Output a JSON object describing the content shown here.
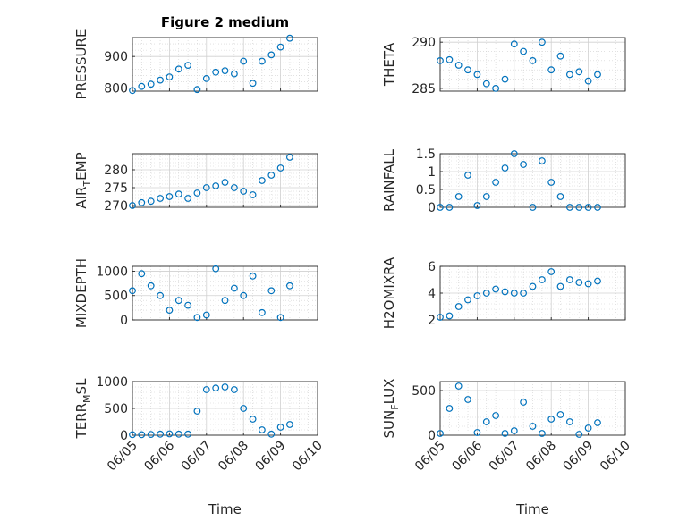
{
  "figure": {
    "title": "Figure 2 medium",
    "background": "#ffffff",
    "marker_color": "#0072BD",
    "grid_color": "#d0d0d0",
    "axis_color": "#262626"
  },
  "chart_data": [
    {
      "type": "scatter",
      "marker": "circle-open",
      "ylabel": "PRESSURE",
      "xlabel": "",
      "title": "Figure 2 medium",
      "xlim": [
        "06/05",
        "06/10"
      ],
      "ylim": [
        790,
        960
      ],
      "yticks": [
        800,
        900
      ],
      "ytick_labels": [
        "800",
        "900"
      ],
      "xticks": [],
      "grid": true,
      "minor_grid": true,
      "x": [
        "06/05 00:00",
        "06/05 06:00",
        "06/05 12:00",
        "06/05 18:00",
        "06/06 00:00",
        "06/06 06:00",
        "06/06 12:00",
        "06/06 18:00",
        "06/07 00:00",
        "06/07 06:00",
        "06/07 12:00",
        "06/07 18:00",
        "06/08 00:00",
        "06/08 06:00",
        "06/08 12:00",
        "06/08 18:00",
        "06/09 00:00",
        "06/09 06:00"
      ],
      "y": [
        792,
        805,
        812,
        825,
        835,
        860,
        872,
        795,
        830,
        850,
        855,
        845,
        885,
        815,
        885,
        905,
        930,
        958
      ]
    },
    {
      "type": "scatter",
      "marker": "circle-open",
      "ylabel": "THETA",
      "xlabel": "",
      "xlim": [
        "06/05",
        "06/10"
      ],
      "ylim": [
        284.7,
        290.5
      ],
      "yticks": [
        285,
        290
      ],
      "ytick_labels": [
        "285",
        "290"
      ],
      "xticks": [],
      "grid": true,
      "minor_grid": true,
      "x": [
        "06/05 00:00",
        "06/05 06:00",
        "06/05 12:00",
        "06/05 18:00",
        "06/06 00:00",
        "06/06 06:00",
        "06/06 12:00",
        "06/06 18:00",
        "06/07 00:00",
        "06/07 06:00",
        "06/07 12:00",
        "06/07 18:00",
        "06/08 00:00",
        "06/08 06:00",
        "06/08 12:00",
        "06/08 18:00",
        "06/09 00:00",
        "06/09 06:00"
      ],
      "y": [
        288.0,
        288.1,
        287.5,
        287.0,
        286.5,
        285.5,
        285.0,
        286.0,
        289.8,
        289.0,
        288.0,
        290.0,
        287.0,
        288.5,
        286.5,
        286.8,
        285.8,
        286.5
      ]
    },
    {
      "type": "scatter",
      "marker": "circle-open",
      "ylabel": "AIR",
      "ylabel_sub": "T",
      "ylabel_rest": "EMP",
      "xlabel": "",
      "xlim": [
        "06/05",
        "06/10"
      ],
      "ylim": [
        269.5,
        284.5
      ],
      "yticks": [
        270,
        275,
        280
      ],
      "ytick_labels": [
        "270",
        "275",
        "280"
      ],
      "xticks": [],
      "grid": true,
      "minor_grid": true,
      "x": [
        "06/05 00:00",
        "06/05 06:00",
        "06/05 12:00",
        "06/05 18:00",
        "06/06 00:00",
        "06/06 06:00",
        "06/06 12:00",
        "06/06 18:00",
        "06/07 00:00",
        "06/07 06:00",
        "06/07 12:00",
        "06/07 18:00",
        "06/08 00:00",
        "06/08 06:00",
        "06/08 12:00",
        "06/08 18:00",
        "06/09 00:00",
        "06/09 06:00"
      ],
      "y": [
        270.0,
        270.8,
        271.2,
        272.0,
        272.5,
        273.2,
        272.0,
        273.5,
        275.0,
        275.5,
        276.5,
        275.0,
        274.0,
        273.0,
        277.0,
        278.5,
        280.5,
        283.5
      ]
    },
    {
      "type": "scatter",
      "marker": "circle-open",
      "ylabel": "RAINFALL",
      "xlabel": "",
      "xlim": [
        "06/05",
        "06/10"
      ],
      "ylim": [
        0,
        1.5
      ],
      "yticks": [
        0,
        0.5,
        1,
        1.5
      ],
      "ytick_labels": [
        "0",
        "0.5",
        "1",
        "1.5"
      ],
      "xticks": [],
      "grid": true,
      "minor_grid": true,
      "x": [
        "06/05 00:00",
        "06/05 06:00",
        "06/05 12:00",
        "06/05 18:00",
        "06/06 00:00",
        "06/06 06:00",
        "06/06 12:00",
        "06/06 18:00",
        "06/07 00:00",
        "06/07 06:00",
        "06/07 12:00",
        "06/07 18:00",
        "06/08 00:00",
        "06/08 06:00",
        "06/08 12:00",
        "06/08 18:00",
        "06/09 00:00",
        "06/09 06:00"
      ],
      "y": [
        0,
        0,
        0.3,
        0.9,
        0.05,
        0.3,
        0.7,
        1.1,
        1.5,
        1.2,
        0,
        1.3,
        0.7,
        0.3,
        0,
        0,
        0,
        0
      ]
    },
    {
      "type": "scatter",
      "marker": "circle-open",
      "ylabel": "MIXDEPTH",
      "xlabel": "",
      "xlim": [
        "06/05",
        "06/10"
      ],
      "ylim": [
        0,
        1100
      ],
      "yticks": [
        0,
        500,
        1000
      ],
      "ytick_labels": [
        "0",
        "500",
        "1000"
      ],
      "xticks": [],
      "grid": true,
      "minor_grid": true,
      "x": [
        "06/05 00:00",
        "06/05 06:00",
        "06/05 12:00",
        "06/05 18:00",
        "06/06 00:00",
        "06/06 06:00",
        "06/06 12:00",
        "06/06 18:00",
        "06/07 00:00",
        "06/07 06:00",
        "06/07 12:00",
        "06/07 18:00",
        "06/08 00:00",
        "06/08 06:00",
        "06/08 12:00",
        "06/08 18:00",
        "06/09 00:00",
        "06/09 06:00"
      ],
      "y": [
        600,
        950,
        700,
        500,
        200,
        400,
        300,
        50,
        100,
        1050,
        400,
        650,
        500,
        900,
        150,
        600,
        50,
        700
      ]
    },
    {
      "type": "scatter",
      "marker": "circle-open",
      "ylabel": "H2OMIXRA",
      "xlabel": "",
      "xlim": [
        "06/05",
        "06/10"
      ],
      "ylim": [
        2,
        6
      ],
      "yticks": [
        2,
        4,
        6
      ],
      "ytick_labels": [
        "2",
        "4",
        "6"
      ],
      "xticks": [],
      "grid": true,
      "minor_grid": true,
      "x": [
        "06/05 00:00",
        "06/05 06:00",
        "06/05 12:00",
        "06/05 18:00",
        "06/06 00:00",
        "06/06 06:00",
        "06/06 12:00",
        "06/06 18:00",
        "06/07 00:00",
        "06/07 06:00",
        "06/07 12:00",
        "06/07 18:00",
        "06/08 00:00",
        "06/08 06:00",
        "06/08 12:00",
        "06/08 18:00",
        "06/09 00:00",
        "06/09 06:00"
      ],
      "y": [
        2.2,
        2.3,
        3.0,
        3.5,
        3.8,
        4.0,
        4.3,
        4.1,
        4.0,
        4.0,
        4.5,
        5.0,
        5.6,
        4.5,
        5.0,
        4.8,
        4.7,
        4.9
      ]
    },
    {
      "type": "scatter",
      "marker": "circle-open",
      "ylabel": "TERR",
      "ylabel_sub": "M",
      "ylabel_rest": "SL",
      "xlabel": "Time",
      "xlim": [
        "06/05",
        "06/10"
      ],
      "ylim": [
        0,
        1000
      ],
      "yticks": [
        0,
        500,
        1000
      ],
      "ytick_labels": [
        "0",
        "500",
        "1000"
      ],
      "xticks": [
        "06/05",
        "06/06",
        "06/07",
        "06/08",
        "06/09",
        "06/10"
      ],
      "grid": true,
      "minor_grid": true,
      "x": [
        "06/05 00:00",
        "06/05 06:00",
        "06/05 12:00",
        "06/05 18:00",
        "06/06 00:00",
        "06/06 06:00",
        "06/06 12:00",
        "06/06 18:00",
        "06/07 00:00",
        "06/07 06:00",
        "06/07 12:00",
        "06/07 18:00",
        "06/08 00:00",
        "06/08 06:00",
        "06/08 12:00",
        "06/08 18:00",
        "06/09 00:00",
        "06/09 06:00"
      ],
      "y": [
        10,
        10,
        15,
        20,
        25,
        20,
        20,
        450,
        850,
        880,
        900,
        850,
        500,
        300,
        100,
        20,
        150,
        200
      ]
    },
    {
      "type": "scatter",
      "marker": "circle-open",
      "ylabel": "SUN",
      "ylabel_sub": "F",
      "ylabel_rest": "LUX",
      "xlabel": "Time",
      "xlim": [
        "06/05",
        "06/10"
      ],
      "ylim": [
        0,
        600
      ],
      "yticks": [
        0,
        500
      ],
      "ytick_labels": [
        "0",
        "500"
      ],
      "xticks": [
        "06/05",
        "06/06",
        "06/07",
        "06/08",
        "06/09",
        "06/10"
      ],
      "grid": true,
      "minor_grid": true,
      "x": [
        "06/05 00:00",
        "06/05 06:00",
        "06/05 12:00",
        "06/05 18:00",
        "06/06 00:00",
        "06/06 06:00",
        "06/06 12:00",
        "06/06 18:00",
        "06/07 00:00",
        "06/07 06:00",
        "06/07 12:00",
        "06/07 18:00",
        "06/08 00:00",
        "06/08 06:00",
        "06/08 12:00",
        "06/08 18:00",
        "06/09 00:00",
        "06/09 06:00"
      ],
      "y": [
        20,
        300,
        550,
        400,
        30,
        150,
        220,
        20,
        50,
        370,
        100,
        20,
        180,
        230,
        150,
        10,
        80,
        140
      ]
    }
  ]
}
